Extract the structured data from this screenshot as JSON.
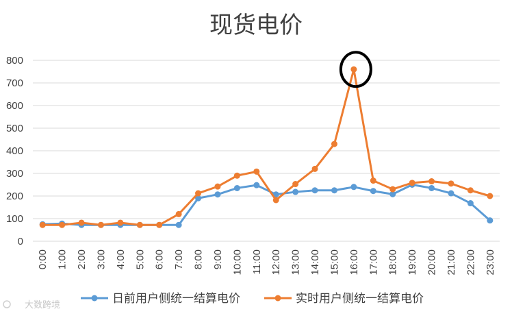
{
  "chart_data": {
    "type": "line",
    "title": "现货电价",
    "xlabel": "",
    "ylabel": "",
    "ylim": [
      0,
      800
    ],
    "yticks": [
      0,
      100,
      200,
      300,
      400,
      500,
      600,
      700,
      800
    ],
    "grid": true,
    "legend_position": "bottom",
    "categories": [
      "0:00",
      "1:00",
      "2:00",
      "3:00",
      "4:00",
      "5:00",
      "6:00",
      "7:00",
      "8:00",
      "9:00",
      "10:00",
      "11:00",
      "12:00",
      "13:00",
      "14:00",
      "15:00",
      "16:00",
      "17:00",
      "18:00",
      "19:00",
      "20:00",
      "21:00",
      "22:00",
      "23:00"
    ],
    "series": [
      {
        "name": "日前用户侧统一结算电价",
        "color": "#5b9bd5",
        "values": [
          75,
          78,
          72,
          72,
          72,
          72,
          72,
          72,
          190,
          207,
          235,
          248,
          207,
          218,
          225,
          225,
          240,
          222,
          208,
          250,
          235,
          212,
          168,
          92
        ]
      },
      {
        "name": "实时用户侧统一结算电价",
        "color": "#ed7d31",
        "values": [
          72,
          72,
          82,
          72,
          82,
          72,
          72,
          120,
          212,
          242,
          290,
          308,
          182,
          253,
          320,
          430,
          760,
          268,
          230,
          258,
          265,
          255,
          225,
          200
        ]
      }
    ],
    "annotations": [
      {
        "type": "circle",
        "target_series": 1,
        "target_index": 16,
        "color": "#000000"
      }
    ]
  },
  "watermark": "大数跨境"
}
